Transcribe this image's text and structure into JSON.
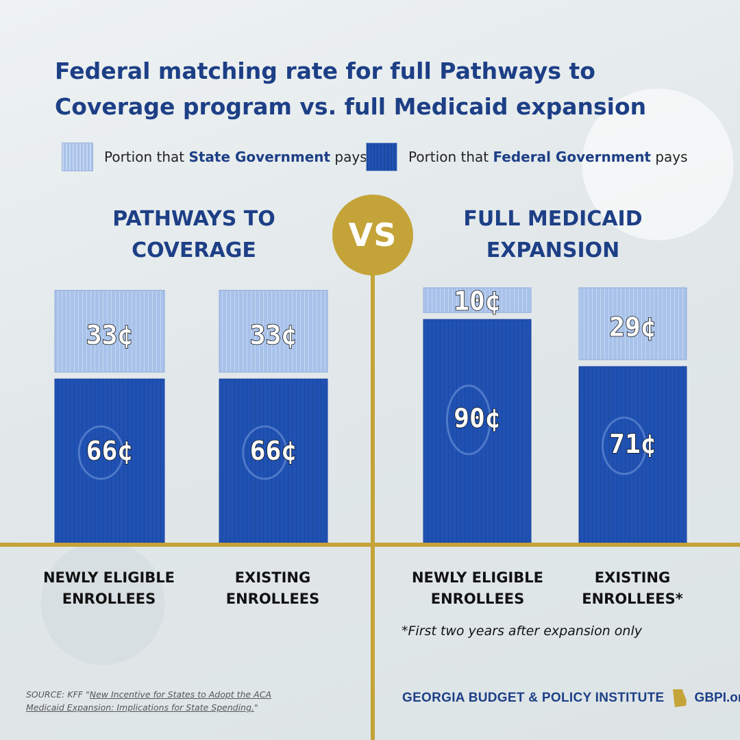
{
  "title_line1": "Federal matching rate for full Pathways to",
  "title_line2": "Coverage program vs. full Medicaid expansion",
  "legend": {
    "state": {
      "prefix": "Portion that ",
      "bold": "State Government",
      "suffix": " pays"
    },
    "federal": {
      "prefix": "Portion that ",
      "bold": "Federal Government",
      "suffix": " pays"
    }
  },
  "left_title": [
    "PATHWAYS TO",
    "COVERAGE"
  ],
  "right_title": [
    "FULL MEDICAID",
    "EXPANSION"
  ],
  "vs_label": "VS",
  "note": "*First two years after expansion only",
  "source": {
    "prefix": "SOURCE:  KFF \"",
    "link": "New Incentive for States to Adopt the ACA Medicaid Expansion: Implications for State Spending.",
    "suffix": "\""
  },
  "footer": {
    "org": "GEORGIA BUDGET & POLICY INSTITUTE",
    "url": "GBPI.org"
  },
  "colors": {
    "state": "#a8c2ea",
    "federal": "#2052b4",
    "gold": "#c4a338",
    "title": "#1d3f86"
  },
  "chart_data": {
    "type": "bar",
    "stacked": true,
    "unit": "¢ per dollar",
    "groups": [
      "PATHWAYS TO COVERAGE",
      "FULL MEDICAID EXPANSION"
    ],
    "categories": [
      {
        "group": 0,
        "label": [
          "NEWLY ELIGIBLE",
          "ENROLLEES"
        ]
      },
      {
        "group": 0,
        "label": [
          "EXISTING",
          "ENROLLEES"
        ]
      },
      {
        "group": 1,
        "label": [
          "NEWLY ELIGIBLE",
          "ENROLLEES"
        ]
      },
      {
        "group": 1,
        "label": [
          "EXISTING",
          "ENROLLEES*"
        ]
      }
    ],
    "series": [
      {
        "name": "Portion that Federal Government pays",
        "values": [
          66,
          66,
          90,
          71
        ],
        "labels": [
          "66¢",
          "66¢",
          "90¢",
          "71¢"
        ]
      },
      {
        "name": "Portion that State Government pays",
        "values": [
          33,
          33,
          10,
          29
        ],
        "labels": [
          "33¢",
          "33¢",
          "10¢",
          "29¢"
        ]
      }
    ],
    "ylim": [
      0,
      100
    ]
  }
}
